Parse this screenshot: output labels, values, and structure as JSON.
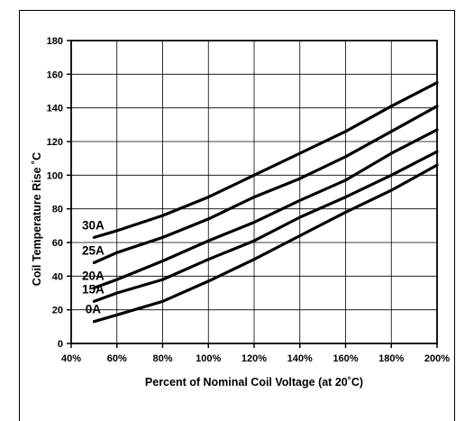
{
  "chart_data": {
    "type": "line",
    "title": "",
    "xlabel": "Percent of Nominal Coil Voltage (at 20˚C)",
    "ylabel": "Coil Temperature Rise ˚C",
    "xlim": [
      40,
      200
    ],
    "ylim": [
      0,
      180
    ],
    "x_ticks": [
      40,
      60,
      80,
      100,
      120,
      140,
      160,
      180,
      200
    ],
    "x_tick_labels": [
      "40%",
      "60%",
      "80%",
      "100%",
      "120%",
      "140%",
      "160%",
      "180%",
      "200%"
    ],
    "y_ticks": [
      0,
      20,
      40,
      60,
      80,
      100,
      120,
      140,
      160,
      180
    ],
    "y_tick_labels": [
      "0",
      "20",
      "40",
      "60",
      "80",
      "100",
      "120",
      "140",
      "160",
      "180"
    ],
    "grid": true,
    "legend": "none (series labeled inline at left end of each curve)",
    "series": [
      {
        "name": "30A",
        "x": [
          50,
          60,
          80,
          100,
          120,
          140,
          160,
          180,
          200
        ],
        "y": [
          63,
          67,
          76,
          87,
          100,
          113,
          126,
          141,
          155
        ]
      },
      {
        "name": "25A",
        "x": [
          50,
          60,
          80,
          100,
          120,
          140,
          160,
          180,
          200
        ],
        "y": [
          48,
          54,
          63,
          74,
          87,
          98,
          111,
          126,
          141
        ]
      },
      {
        "name": "20A",
        "x": [
          50,
          60,
          80,
          100,
          120,
          140,
          160,
          180,
          200
        ],
        "y": [
          33,
          38,
          49,
          61,
          72,
          85,
          97,
          113,
          127
        ]
      },
      {
        "name": "15A",
        "x": [
          50,
          60,
          80,
          100,
          120,
          140,
          160,
          180,
          200
        ],
        "y": [
          25,
          30,
          38,
          50,
          61,
          75,
          87,
          100,
          114
        ]
      },
      {
        "name": "0A",
        "x": [
          50,
          60,
          80,
          100,
          120,
          140,
          160,
          180,
          200
        ],
        "y": [
          13,
          17,
          25,
          37,
          50,
          64,
          78,
          91,
          106
        ]
      }
    ]
  }
}
